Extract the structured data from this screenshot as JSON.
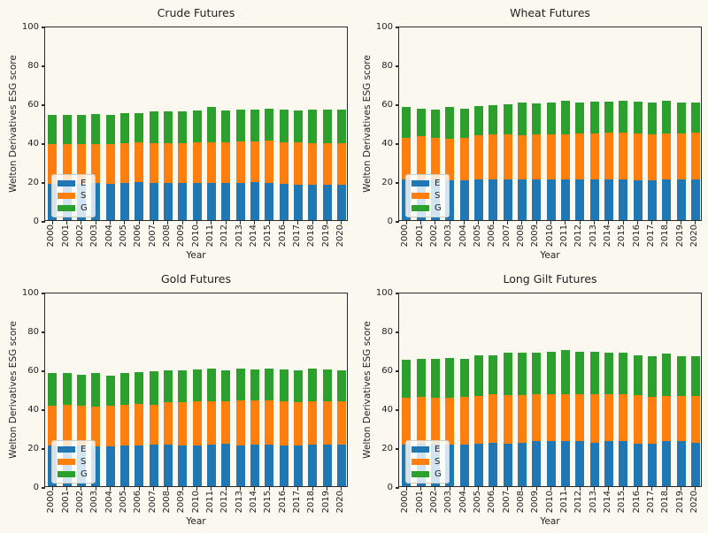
{
  "figure": {
    "background": "#fbf8ef",
    "text_color": "#1f1f1f",
    "axis_color": "#2b2b2b"
  },
  "colors": {
    "E": "#1f77b4",
    "S": "#ff7f0e",
    "G": "#2ca02c"
  },
  "axes": {
    "ylabel": "Welton Derivatives ESG score",
    "xlabel": "Year",
    "ylim": [
      0,
      100
    ],
    "yticks": [
      0,
      20,
      40,
      60,
      80,
      100
    ],
    "grid": false
  },
  "legend": {
    "entries": [
      "E",
      "S",
      "G"
    ],
    "position": "lower left"
  },
  "chart_data": [
    {
      "type": "bar",
      "stacked": true,
      "title": "Crude Futures",
      "xlabel": "Year",
      "ylabel": "Welton Derivatives ESG score",
      "ylim": [
        0,
        100
      ],
      "categories": [
        "2000",
        "2001",
        "2002",
        "2003",
        "2004",
        "2005",
        "2006",
        "2007",
        "2008",
        "2009",
        "2010",
        "2011",
        "2012",
        "2013",
        "2014",
        "2015",
        "2016",
        "2017",
        "2018",
        "2019",
        "2020"
      ],
      "series": [
        {
          "name": "E",
          "values": [
            18.5,
            18.5,
            18.5,
            19,
            18.5,
            19,
            19.5,
            19,
            19,
            19,
            19,
            19,
            19,
            19,
            19.5,
            19,
            18.5,
            18,
            18,
            18,
            18
          ]
        },
        {
          "name": "S",
          "values": [
            20.5,
            20.5,
            20.5,
            20,
            20.5,
            20.5,
            20.5,
            20.5,
            20.5,
            20.5,
            21,
            21,
            21,
            21.5,
            21,
            22,
            21.5,
            22,
            21.5,
            21.5,
            21.5
          ]
        },
        {
          "name": "G",
          "values": [
            15,
            15,
            15,
            15.5,
            15,
            15.5,
            15,
            16.5,
            16.5,
            16.5,
            16.5,
            18,
            16.5,
            16.5,
            16.5,
            16.5,
            17,
            16.5,
            17.5,
            17.5,
            17.5
          ]
        }
      ]
    },
    {
      "type": "bar",
      "stacked": true,
      "title": "Wheat Futures",
      "xlabel": "Year",
      "ylabel": "Welton Derivatives ESG score",
      "ylim": [
        0,
        100
      ],
      "categories": [
        "2000",
        "2001",
        "2002",
        "2003",
        "2004",
        "2005",
        "2006",
        "2007",
        "2008",
        "2009",
        "2010",
        "2011",
        "2012",
        "2013",
        "2014",
        "2015",
        "2016",
        "2017",
        "2018",
        "2019",
        "2020"
      ],
      "series": [
        {
          "name": "E",
          "values": [
            21,
            21,
            21,
            20.5,
            20.5,
            21,
            21,
            21,
            21,
            21,
            21,
            21,
            21,
            21,
            21,
            21,
            20.5,
            20.5,
            21,
            21,
            21
          ]
        },
        {
          "name": "S",
          "values": [
            21.5,
            22,
            21.5,
            21.5,
            22,
            22.5,
            23,
            23,
            22.5,
            23,
            23,
            23,
            23.5,
            23.5,
            24,
            24,
            24,
            23.5,
            23.5,
            23.5,
            24
          ]
        },
        {
          "name": "G",
          "values": [
            15.5,
            14.5,
            14.5,
            16,
            15,
            15,
            15,
            15.5,
            17,
            16,
            16.5,
            17.5,
            16,
            16.5,
            16,
            16.5,
            16.5,
            16.5,
            17,
            16,
            15.5
          ]
        }
      ]
    },
    {
      "type": "bar",
      "stacked": true,
      "title": "Gold Futures",
      "xlabel": "Year",
      "ylabel": "Welton Derivatives ESG score",
      "ylim": [
        0,
        100
      ],
      "categories": [
        "2000",
        "2001",
        "2002",
        "2003",
        "2004",
        "2005",
        "2006",
        "2007",
        "2008",
        "2009",
        "2010",
        "2011",
        "2012",
        "2013",
        "2014",
        "2015",
        "2016",
        "2017",
        "2018",
        "2019",
        "2020"
      ],
      "series": [
        {
          "name": "E",
          "values": [
            21,
            21,
            21,
            20.5,
            20.5,
            21,
            21,
            21.5,
            21.5,
            21,
            21,
            21.5,
            22,
            21,
            21.5,
            21.5,
            21,
            21,
            21.5,
            21.5,
            21.5
          ]
        },
        {
          "name": "S",
          "values": [
            20.5,
            21,
            20.5,
            20.5,
            21,
            21,
            21.5,
            20.5,
            21.5,
            22,
            22.5,
            22,
            21.5,
            23,
            22.5,
            22.5,
            22.5,
            22,
            22,
            22,
            22
          ]
        },
        {
          "name": "G",
          "values": [
            16.5,
            16,
            16,
            17,
            15.5,
            16,
            16,
            17,
            16.5,
            16.5,
            16.5,
            17,
            16,
            16.5,
            16,
            16.5,
            16.5,
            16.5,
            17,
            16.5,
            16
          ]
        }
      ]
    },
    {
      "type": "bar",
      "stacked": true,
      "title": "Long Gilt Futures",
      "xlabel": "Year",
      "ylabel": "Welton Derivatives ESG score",
      "ylim": [
        0,
        100
      ],
      "categories": [
        "2000",
        "2001",
        "2002",
        "2003",
        "2004",
        "2005",
        "2006",
        "2007",
        "2008",
        "2009",
        "2010",
        "2011",
        "2012",
        "2013",
        "2014",
        "2015",
        "2016",
        "2017",
        "2018",
        "2019",
        "2020"
      ],
      "series": [
        {
          "name": "E",
          "values": [
            21.5,
            22,
            22,
            21.5,
            21.5,
            22,
            22.5,
            22,
            22.5,
            23,
            23,
            23,
            23,
            22.5,
            23,
            23,
            22,
            22,
            23,
            23,
            22.5
          ]
        },
        {
          "name": "S",
          "values": [
            24,
            24,
            23.5,
            24,
            24.5,
            24.5,
            25,
            25,
            24.5,
            24.5,
            24.5,
            24.5,
            24.5,
            25,
            24.5,
            24.5,
            25,
            24,
            23.5,
            23.5,
            24
          ]
        },
        {
          "name": "G",
          "values": [
            19.5,
            19.5,
            20,
            20.5,
            19.5,
            21,
            20,
            21.5,
            21.5,
            21,
            21.5,
            22.5,
            21.5,
            21.5,
            21,
            21,
            20.5,
            21,
            21.5,
            20.5,
            20.5
          ]
        }
      ]
    }
  ]
}
